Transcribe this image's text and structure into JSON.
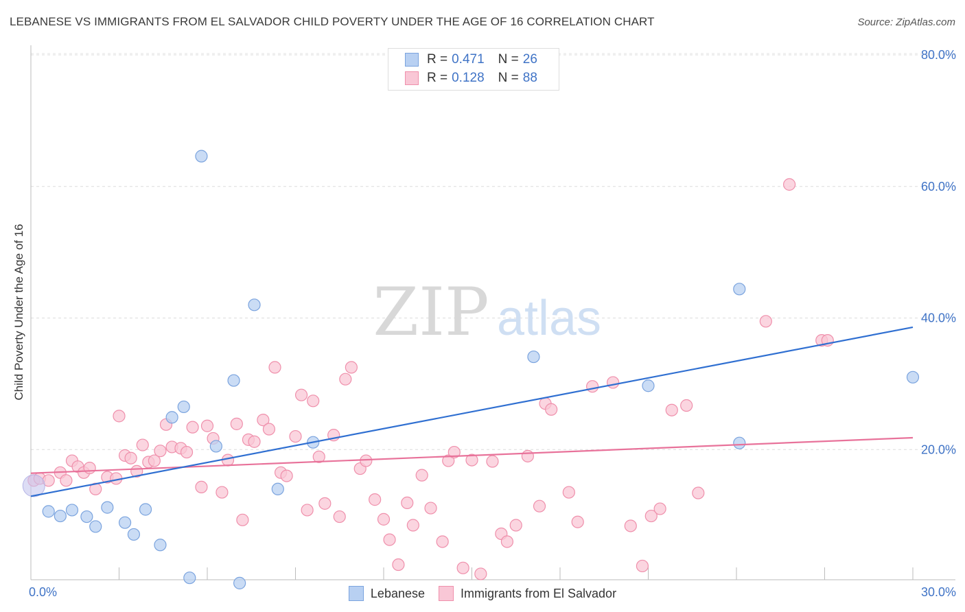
{
  "title": "LEBANESE VS IMMIGRANTS FROM EL SALVADOR CHILD POVERTY UNDER THE AGE OF 16 CORRELATION CHART",
  "source": "Source: ZipAtlas.com",
  "watermark": {
    "zip": "ZIP",
    "atlas": "atlas"
  },
  "legend": {
    "r_label": "R =",
    "n_label": "N =",
    "series": [
      {
        "name": "Lebanese",
        "r": "0.471",
        "n": "26",
        "fill": "#b8d0f2",
        "stroke": "#7aa3de"
      },
      {
        "name": "Immigrants from El Salvador",
        "r": "0.128",
        "n": "88",
        "fill": "#f9c7d6",
        "stroke": "#ef8fab"
      }
    ]
  },
  "chart_data": {
    "type": "scatter",
    "title": "LEBANESE VS IMMIGRANTS FROM EL SALVADOR CHILD POVERTY UNDER THE AGE OF 16 CORRELATION CHART",
    "xlabel": "",
    "ylabel": "Child Poverty Under the Age of 16",
    "xlim": [
      0,
      30
    ],
    "ylim": [
      0,
      80
    ],
    "x_tick_labels": [
      "0.0%",
      "30.0%"
    ],
    "y_ticks": [
      20,
      40,
      60,
      80
    ],
    "y_tick_labels": [
      "20.0%",
      "40.0%",
      "60.0%",
      "80.0%"
    ],
    "grid": true,
    "series": [
      {
        "name": "Lebanese",
        "color": "#5a8fd8",
        "trend_color": "#2f6fd1",
        "trend": {
          "x": [
            0,
            30
          ],
          "y": [
            12.9,
            38.6
          ]
        },
        "points": [
          [
            0.1,
            14.5
          ],
          [
            0.6,
            10.6
          ],
          [
            1.0,
            9.9
          ],
          [
            1.4,
            10.8
          ],
          [
            1.9,
            9.8
          ],
          [
            2.2,
            8.3
          ],
          [
            2.6,
            11.2
          ],
          [
            3.2,
            8.9
          ],
          [
            3.5,
            7.1
          ],
          [
            3.9,
            10.9
          ],
          [
            4.4,
            5.5
          ],
          [
            4.8,
            24.9
          ],
          [
            5.2,
            26.5
          ],
          [
            5.4,
            0.5
          ],
          [
            5.8,
            64.6
          ],
          [
            6.3,
            20.5
          ],
          [
            6.9,
            30.5
          ],
          [
            7.1,
            -0.3
          ],
          [
            7.6,
            42.0
          ],
          [
            8.4,
            14.0
          ],
          [
            9.6,
            21.1
          ],
          [
            17.1,
            34.1
          ],
          [
            21.0,
            29.7
          ],
          [
            24.1,
            21.0
          ],
          [
            24.1,
            44.4
          ],
          [
            30.0,
            31.0
          ]
        ]
      },
      {
        "name": "Immigrants from El Salvador",
        "color": "#ef86a6",
        "trend_color": "#e8729a",
        "trend": {
          "x": [
            0,
            30
          ],
          "y": [
            16.4,
            21.8
          ]
        },
        "points": [
          [
            0.1,
            15.3
          ],
          [
            0.3,
            15.6
          ],
          [
            0.6,
            15.3
          ],
          [
            1.0,
            16.5
          ],
          [
            1.2,
            15.3
          ],
          [
            1.4,
            18.3
          ],
          [
            1.6,
            17.4
          ],
          [
            1.8,
            16.5
          ],
          [
            2.0,
            17.2
          ],
          [
            2.2,
            14.0
          ],
          [
            2.6,
            15.8
          ],
          [
            2.9,
            15.6
          ],
          [
            3.0,
            25.1
          ],
          [
            3.2,
            19.1
          ],
          [
            3.4,
            18.7
          ],
          [
            3.6,
            16.7
          ],
          [
            3.8,
            20.7
          ],
          [
            4.0,
            18.1
          ],
          [
            4.2,
            18.3
          ],
          [
            4.4,
            19.8
          ],
          [
            4.6,
            23.8
          ],
          [
            4.8,
            20.4
          ],
          [
            5.1,
            20.2
          ],
          [
            5.3,
            19.6
          ],
          [
            5.5,
            23.4
          ],
          [
            5.8,
            14.3
          ],
          [
            6.0,
            23.6
          ],
          [
            6.2,
            21.7
          ],
          [
            6.5,
            13.5
          ],
          [
            6.7,
            18.4
          ],
          [
            7.0,
            23.9
          ],
          [
            7.2,
            9.3
          ],
          [
            7.4,
            21.5
          ],
          [
            7.6,
            21.2
          ],
          [
            7.9,
            24.5
          ],
          [
            8.1,
            23.1
          ],
          [
            8.3,
            32.5
          ],
          [
            8.5,
            16.5
          ],
          [
            8.7,
            16.0
          ],
          [
            9.0,
            22.0
          ],
          [
            9.2,
            28.3
          ],
          [
            9.4,
            10.8
          ],
          [
            9.6,
            27.4
          ],
          [
            9.8,
            18.9
          ],
          [
            10.0,
            11.8
          ],
          [
            10.3,
            22.2
          ],
          [
            10.5,
            9.8
          ],
          [
            10.7,
            30.7
          ],
          [
            10.9,
            32.5
          ],
          [
            11.2,
            17.1
          ],
          [
            11.4,
            18.3
          ],
          [
            11.7,
            12.4
          ],
          [
            12.0,
            9.4
          ],
          [
            12.2,
            6.3
          ],
          [
            12.5,
            2.5
          ],
          [
            12.8,
            11.9
          ],
          [
            13.0,
            8.5
          ],
          [
            13.3,
            16.1
          ],
          [
            13.6,
            11.1
          ],
          [
            14.0,
            6.0
          ],
          [
            14.2,
            18.3
          ],
          [
            14.4,
            19.6
          ],
          [
            14.7,
            2.0
          ],
          [
            15.0,
            18.4
          ],
          [
            15.3,
            1.1
          ],
          [
            15.7,
            18.2
          ],
          [
            16.0,
            7.2
          ],
          [
            16.2,
            6.0
          ],
          [
            16.5,
            8.5
          ],
          [
            16.9,
            19.0
          ],
          [
            17.3,
            11.4
          ],
          [
            17.5,
            27.0
          ],
          [
            17.7,
            26.1
          ],
          [
            18.3,
            13.5
          ],
          [
            18.6,
            9.0
          ],
          [
            19.1,
            29.6
          ],
          [
            19.8,
            30.2
          ],
          [
            20.4,
            8.4
          ],
          [
            20.8,
            2.3
          ],
          [
            21.1,
            9.9
          ],
          [
            21.4,
            11.0
          ],
          [
            21.8,
            26.0
          ],
          [
            22.3,
            26.7
          ],
          [
            22.7,
            13.4
          ],
          [
            25.0,
            39.5
          ],
          [
            25.8,
            60.3
          ],
          [
            26.9,
            36.6
          ],
          [
            27.1,
            36.6
          ]
        ]
      }
    ]
  }
}
